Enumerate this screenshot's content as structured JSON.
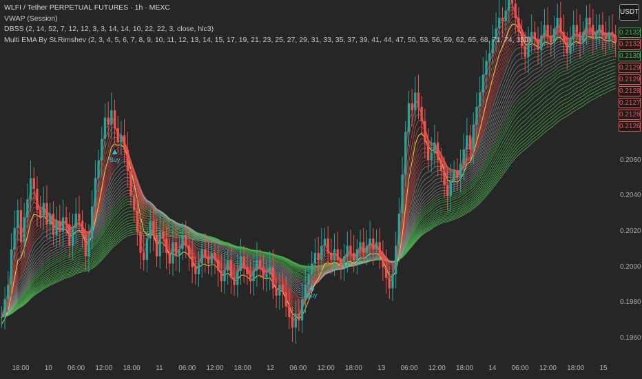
{
  "legend": {
    "title": "WLFI / Tether PERPETUAL FUTURES · 1h · MEXC",
    "line2": "VWAP (Session)",
    "line3": "DBSS (2, 14, 52, 7, 12, 12, 3, 3, 14, 14, 10, 22, 22, 3, close, hlc3)",
    "line4": "Multi EMA By St.Rimshev (2, 3, 4, 5, 6, 7, 8, 9, 10, 11, 12, 13, 14, 15, 17, 19, 21, 23, 25, 27, 29, 31, 33, 35, 37, 39, 41, 44, 47, 50, 53, 56, 59, 62, 65, 68, 71, 74, 350)"
  },
  "price_scale": {
    "currency": "USDT",
    "tags": [
      {
        "text": "0.2132",
        "color": "#4caf50"
      },
      {
        "text": "0.2132",
        "color": "#ef5350"
      },
      {
        "text": "0.2130",
        "color": "#4caf50"
      },
      {
        "text": "0.2129",
        "color": "#ef5350"
      },
      {
        "text": "0.2129",
        "color": "#ef5350"
      },
      {
        "text": "0.2128",
        "color": "#ef5350"
      },
      {
        "text": "0.2127",
        "color": "#ef5350"
      },
      {
        "text": "0.2126",
        "color": "#ef5350"
      },
      {
        "text": "0.2126",
        "color": "#ef5350"
      }
    ]
  },
  "signals": [
    {
      "label": "Buy",
      "x_index": 35
    },
    {
      "label": "Buy",
      "x_index": 96
    }
  ],
  "chart_data": {
    "type": "candlestick",
    "symbol": "WLFI / Tether PERPETUAL FUTURES",
    "interval": "1h",
    "exchange": "MEXC",
    "ylim": [
      0.1948,
      0.215
    ],
    "yticks": [
      0.196,
      0.198,
      0.2,
      0.202,
      0.204,
      0.206
    ],
    "xticks": [
      "18:00",
      "10",
      "06:00",
      "12:00",
      "18:00",
      "11",
      "06:00",
      "12:00",
      "18:00",
      "12",
      "06:00",
      "12:00",
      "18:00",
      "13",
      "06:00",
      "12:00",
      "18:00",
      "14",
      "06:00",
      "12:00",
      "18:00",
      "15"
    ],
    "close_path": [
      0.1972,
      0.1982,
      0.199,
      0.201,
      0.2022,
      0.2032,
      0.2014,
      0.2028,
      0.2038,
      0.205,
      0.2044,
      0.2032,
      0.2028,
      0.2036,
      0.2024,
      0.203,
      0.2018,
      0.2026,
      0.202,
      0.2028,
      0.2024,
      0.2012,
      0.2022,
      0.203,
      0.2026,
      0.2018,
      0.2006,
      0.2016,
      0.2034,
      0.205,
      0.206,
      0.2072,
      0.2084,
      0.208,
      0.2088,
      0.2078,
      0.207,
      0.2074,
      0.2066,
      0.2054,
      0.204,
      0.2032,
      0.202,
      0.2008,
      0.2004,
      0.2016,
      0.2026,
      0.2018,
      0.2006,
      0.202,
      0.2016,
      0.2008,
      0.2002,
      0.2014,
      0.2006,
      0.201,
      0.2018,
      0.2012,
      0.2006,
      0.2,
      0.1996,
      0.2002,
      0.201,
      0.2006,
      0.2002,
      0.2008,
      0.2004,
      0.1998,
      0.1992,
      0.1998,
      0.2004,
      0.1994,
      0.199,
      0.1998,
      0.2006,
      0.2,
      0.1996,
      0.1992,
      0.1998,
      0.2004,
      0.2,
      0.1994,
      0.1996,
      0.2,
      0.1988,
      0.1984,
      0.199,
      0.1986,
      0.1978,
      0.1972,
      0.1966,
      0.1974,
      0.197,
      0.1982,
      0.199,
      0.1996,
      0.2002,
      0.2008,
      0.2004,
      0.2012,
      0.2016,
      0.2008,
      0.2004,
      0.201,
      0.2004,
      0.2,
      0.2006,
      0.2012,
      0.2008,
      0.2004,
      0.201,
      0.2014,
      0.2008,
      0.2012,
      0.2016,
      0.201,
      0.2014,
      0.2006,
      0.2,
      0.1994,
      0.1988,
      0.1996,
      0.2012,
      0.203,
      0.2052,
      0.2076,
      0.2092,
      0.2088,
      0.2098,
      0.209,
      0.2082,
      0.207,
      0.206,
      0.2064,
      0.207,
      0.206,
      0.2054,
      0.2046,
      0.204,
      0.2048,
      0.2054,
      0.205,
      0.2058,
      0.2066,
      0.2074,
      0.2066,
      0.208,
      0.209,
      0.2098,
      0.2108,
      0.2116,
      0.212,
      0.2128,
      0.2134,
      0.214,
      0.2138,
      0.2144,
      0.215,
      0.2148,
      0.214,
      0.2132,
      0.2124,
      0.2118,
      0.2126,
      0.2132,
      0.2128,
      0.2122,
      0.213,
      0.2136,
      0.213,
      0.2126,
      0.2134,
      0.214,
      0.2132,
      0.2126,
      0.212,
      0.2128,
      0.2136,
      0.2132,
      0.2126,
      0.2132,
      0.214,
      0.2136,
      0.2128,
      0.2132,
      0.2136,
      0.213,
      0.2128,
      0.2132,
      0.213,
      0.2126
    ]
  }
}
